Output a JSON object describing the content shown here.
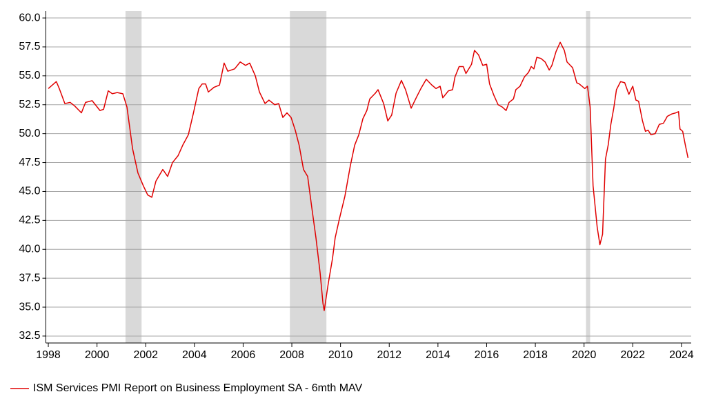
{
  "chart_data": {
    "type": "line",
    "x": [
      1998.0,
      1998.33,
      1998.45,
      1998.68,
      1998.9,
      1999.08,
      1999.36,
      1999.53,
      1999.8,
      2000.12,
      2000.27,
      2000.46,
      2000.63,
      2000.83,
      2001.06,
      2001.23,
      2001.46,
      2001.68,
      2001.9,
      2002.08,
      2002.25,
      2002.42,
      2002.7,
      2002.9,
      2003.1,
      2003.33,
      2003.52,
      2003.75,
      2003.95,
      2004.18,
      2004.32,
      2004.46,
      2004.57,
      2004.8,
      2005.03,
      2005.22,
      2005.37,
      2005.65,
      2005.88,
      2006.1,
      2006.27,
      2006.5,
      2006.67,
      2006.9,
      2007.06,
      2007.3,
      2007.46,
      2007.63,
      2007.8,
      2007.97,
      2008.14,
      2008.3,
      2008.48,
      2008.65,
      2008.82,
      2008.99,
      2009.16,
      2009.28,
      2009.33,
      2009.5,
      2009.67,
      2009.78,
      2009.95,
      2010.18,
      2010.4,
      2010.58,
      2010.75,
      2010.92,
      2011.08,
      2011.2,
      2011.43,
      2011.54,
      2011.77,
      2011.94,
      2012.1,
      2012.28,
      2012.5,
      2012.67,
      2012.9,
      2013.13,
      2013.3,
      2013.52,
      2013.75,
      2013.92,
      2014.09,
      2014.2,
      2014.43,
      2014.6,
      2014.7,
      2014.87,
      2015.04,
      2015.15,
      2015.38,
      2015.5,
      2015.67,
      2015.84,
      2016.0,
      2016.12,
      2016.3,
      2016.47,
      2016.64,
      2016.8,
      2016.92,
      2017.1,
      2017.2,
      2017.37,
      2017.55,
      2017.72,
      2017.83,
      2017.94,
      2018.06,
      2018.23,
      2018.4,
      2018.57,
      2018.68,
      2018.85,
      2019.02,
      2019.19,
      2019.3,
      2019.53,
      2019.7,
      2019.8,
      2020.03,
      2020.14,
      2020.25,
      2020.37,
      2020.54,
      2020.65,
      2020.76,
      2020.88,
      2020.99,
      2021.1,
      2021.22,
      2021.33,
      2021.5,
      2021.67,
      2021.84,
      2022.0,
      2022.13,
      2022.24,
      2022.4,
      2022.52,
      2022.63,
      2022.75,
      2022.92,
      2023.09,
      2023.26,
      2023.42,
      2023.6,
      2023.77,
      2023.88,
      2023.94,
      2024.05,
      2024.16,
      2024.27
    ],
    "series": [
      {
        "name": "ISM Services PMI Report on Business Employment SA - 6mth MAV",
        "color": "#e00000",
        "values": [
          53.9,
          54.5,
          53.9,
          52.6,
          52.7,
          52.4,
          51.8,
          52.7,
          52.85,
          52.0,
          52.1,
          53.7,
          53.45,
          53.55,
          53.45,
          52.3,
          48.7,
          46.6,
          45.5,
          44.7,
          44.5,
          45.9,
          46.9,
          46.3,
          47.5,
          48.1,
          49.0,
          49.9,
          51.7,
          53.9,
          54.3,
          54.3,
          53.6,
          54.0,
          54.2,
          56.1,
          55.4,
          55.6,
          56.2,
          55.9,
          56.1,
          55.0,
          53.6,
          52.6,
          52.9,
          52.5,
          52.6,
          51.4,
          51.8,
          51.4,
          50.3,
          49.0,
          46.9,
          46.3,
          43.6,
          41.0,
          38.0,
          35.3,
          34.7,
          37.1,
          39.2,
          41.0,
          42.6,
          44.6,
          47.2,
          49.0,
          49.9,
          51.3,
          52.0,
          53.0,
          53.5,
          53.8,
          52.6,
          51.1,
          51.6,
          53.5,
          54.6,
          53.8,
          52.2,
          53.2,
          53.9,
          54.7,
          54.2,
          53.9,
          54.1,
          53.1,
          53.7,
          53.8,
          54.9,
          55.8,
          55.8,
          55.2,
          56.0,
          57.2,
          56.8,
          55.9,
          56.0,
          54.3,
          53.3,
          52.5,
          52.3,
          52.0,
          52.7,
          53.0,
          53.8,
          54.1,
          54.9,
          55.3,
          55.8,
          55.6,
          56.6,
          56.5,
          56.2,
          55.5,
          55.9,
          57.1,
          57.9,
          57.2,
          56.2,
          55.7,
          54.4,
          54.3,
          53.9,
          54.1,
          52.3,
          45.5,
          41.9,
          40.4,
          41.3,
          47.8,
          49.0,
          50.8,
          52.2,
          53.8,
          54.5,
          54.4,
          53.4,
          54.1,
          52.9,
          52.8,
          51.1,
          50.2,
          50.3,
          49.9,
          50.0,
          50.8,
          50.9,
          51.5,
          51.7,
          51.8,
          51.9,
          50.4,
          50.2,
          49.0,
          47.9
        ]
      }
    ],
    "recessions": [
      [
        2001.17,
        2001.83
      ],
      [
        2007.92,
        2009.42
      ],
      [
        2020.08,
        2020.25
      ]
    ],
    "recession_color": "#d9d9d9",
    "xlim": [
      1997.9,
      2024.4
    ],
    "xticks": [
      1998,
      2000,
      2002,
      2004,
      2006,
      2008,
      2010,
      2012,
      2014,
      2016,
      2018,
      2020,
      2022,
      2024
    ],
    "ylim": [
      31.9,
      60.6
    ],
    "yticks": [
      {
        "value": 32.5,
        "label": "32.5"
      },
      {
        "value": 35,
        "label": "35.0"
      },
      {
        "value": 37.5,
        "label": "37.5"
      },
      {
        "value": 40,
        "label": "40.0"
      },
      {
        "value": 42.5,
        "label": "42.5"
      },
      {
        "value": 45,
        "label": "45.0"
      },
      {
        "value": 47.5,
        "label": "47.5"
      },
      {
        "value": 50,
        "label": "50.0"
      },
      {
        "value": 52.5,
        "label": "52.5"
      },
      {
        "value": 55,
        "label": "55.0"
      },
      {
        "value": 57.5,
        "label": "57.5"
      },
      {
        "value": 60,
        "label": "60.0"
      }
    ],
    "grid": true,
    "legend": "bottom-left"
  }
}
